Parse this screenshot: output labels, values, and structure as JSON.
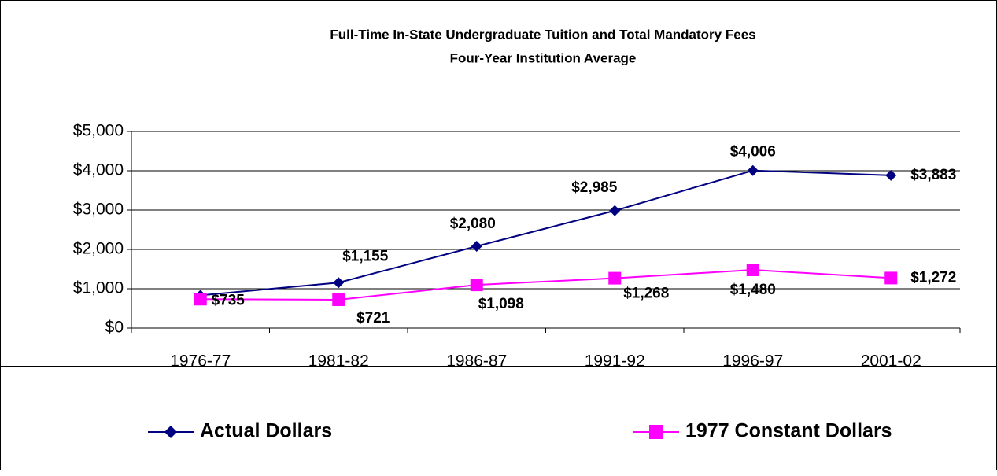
{
  "chart_data": {
    "type": "line",
    "title": "Full-Time In-State Undergraduate Tuition and Total Mandatory Fees",
    "subtitle": "Four-Year Institution Average",
    "categories": [
      "1976-77",
      "1981-82",
      "1986-87",
      "1991-92",
      "1996-97",
      "2001-02"
    ],
    "series": [
      {
        "name": "Actual Dollars",
        "color": "#000080",
        "marker": "diamond",
        "values": [
          833,
          1155,
          2080,
          2985,
          4006,
          3883
        ],
        "value_labels": [
          null,
          "$1,155",
          "$2,080",
          "$2,985",
          "$4,006",
          "$3,883"
        ]
      },
      {
        "name": "1977 Constant Dollars",
        "color": "#ff00ff",
        "marker": "square",
        "values": [
          735,
          721,
          1098,
          1268,
          1480,
          1272
        ],
        "value_labels": [
          "$735",
          "$721",
          "$1,098",
          "$1,268",
          "$1,480",
          "$1,272"
        ]
      }
    ],
    "ylim": [
      0,
      5000
    ],
    "yticks": [
      {
        "value": 0,
        "label": "$0"
      },
      {
        "value": 1000,
        "label": "$1,000"
      },
      {
        "value": 2000,
        "label": "$2,000"
      },
      {
        "value": 3000,
        "label": "$3,000"
      },
      {
        "value": 4000,
        "label": "$4,000"
      },
      {
        "value": 5000,
        "label": "$5,000"
      }
    ],
    "grid": true,
    "legend": "bottom"
  }
}
